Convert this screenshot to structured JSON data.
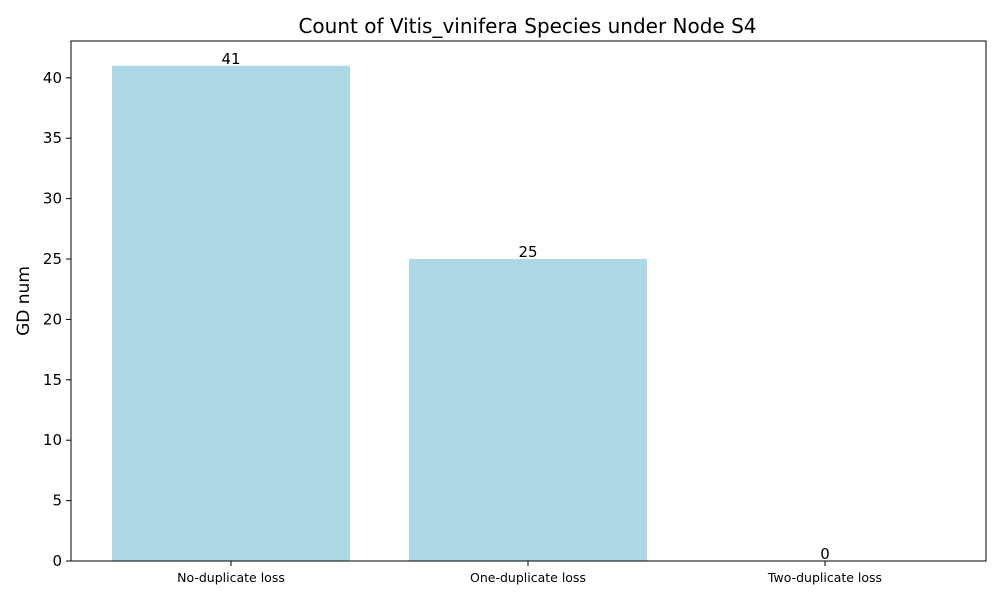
{
  "chart_data": {
    "type": "bar",
    "title": "Count of Vitis_vinifera Species under Node S4",
    "xlabel": "",
    "ylabel": "GD num",
    "categories": [
      "No-duplicate loss",
      "One-duplicate loss",
      "Two-duplicate loss"
    ],
    "values": [
      41,
      25,
      0
    ],
    "data_labels": [
      "41",
      "25",
      "0"
    ],
    "ylim": [
      0,
      43.05
    ],
    "yticks": [
      0,
      5,
      10,
      15,
      20,
      25,
      30,
      35,
      40
    ],
    "grid": false,
    "legend": "none",
    "bar_color": "#add8e6"
  }
}
